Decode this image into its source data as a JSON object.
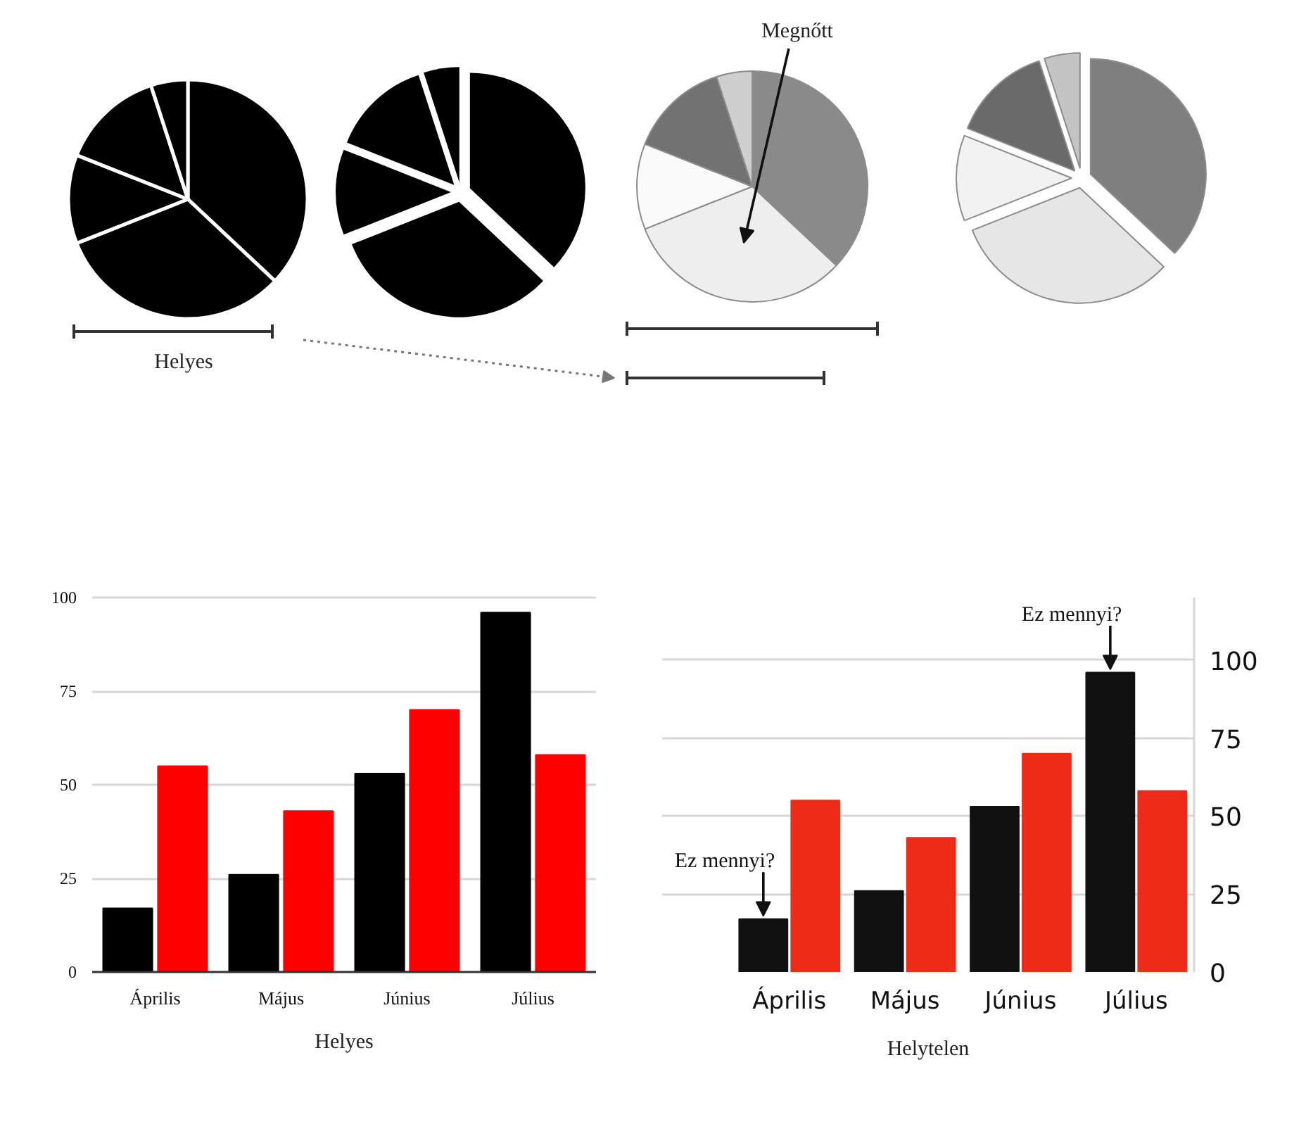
{
  "chart_data": [
    {
      "type": "pie",
      "categories": [
        null,
        null,
        null,
        null,
        null
      ],
      "values": [
        37,
        32,
        12,
        14,
        5
      ],
      "colors": [
        "#000000",
        "#000000",
        "#000000",
        "#000000",
        "#000000"
      ],
      "annotations": [
        "Helyes"
      ]
    },
    {
      "type": "pie",
      "categories": [
        null,
        null,
        null,
        null,
        null
      ],
      "values": [
        37,
        32,
        12,
        14,
        5
      ],
      "colors": [
        "#000000",
        "#000000",
        "#000000",
        "#000000",
        "#000000"
      ]
    },
    {
      "type": "pie",
      "categories": [
        null,
        null,
        null,
        null,
        null
      ],
      "values": [
        37,
        32,
        12,
        14,
        5
      ],
      "colors": [
        "#8a8a8a",
        "#eeeeee",
        "#fafafa",
        "#727272",
        "#cfcfcf"
      ],
      "annotations": [
        "Megnőtt"
      ]
    },
    {
      "type": "pie",
      "categories": [
        null,
        null,
        null,
        null,
        null
      ],
      "values": [
        37,
        32,
        12,
        14,
        5
      ],
      "colors": [
        "#7f7f7f",
        "#e6e6e6",
        "#f2f2f2",
        "#6a6a6a",
        "#c4c4c4"
      ]
    },
    {
      "type": "bar",
      "categories": [
        "Április",
        "Május",
        "Június",
        "Július"
      ],
      "series": [
        {
          "color": "#000000",
          "values": [
            17,
            26,
            53,
            96
          ]
        },
        {
          "color": "#ff0000",
          "values": [
            55,
            43,
            70,
            58
          ]
        }
      ],
      "ylim": [
        0,
        100
      ],
      "yticks": [
        0,
        25,
        50,
        75,
        100
      ],
      "grid": "y",
      "annotations": [
        "Helyes"
      ]
    },
    {
      "type": "bar",
      "categories": [
        "Április",
        "Május",
        "Június",
        "Július"
      ],
      "series": [
        {
          "color": "#111111",
          "values": [
            17,
            26,
            53,
            96
          ]
        },
        {
          "color": "#ee2b17",
          "values": [
            55,
            43,
            70,
            58
          ]
        }
      ],
      "ylim": [
        0,
        120
      ],
      "yticks": [
        0,
        25,
        50,
        75,
        100
      ],
      "grid": "y",
      "annotations": [
        {
          "text": "Ez mennyi?",
          "x": "Április",
          "y": 17
        },
        {
          "text": "Ez mennyi?",
          "x": "Július",
          "y": 96
        },
        "Helytelen"
      ]
    }
  ]
}
